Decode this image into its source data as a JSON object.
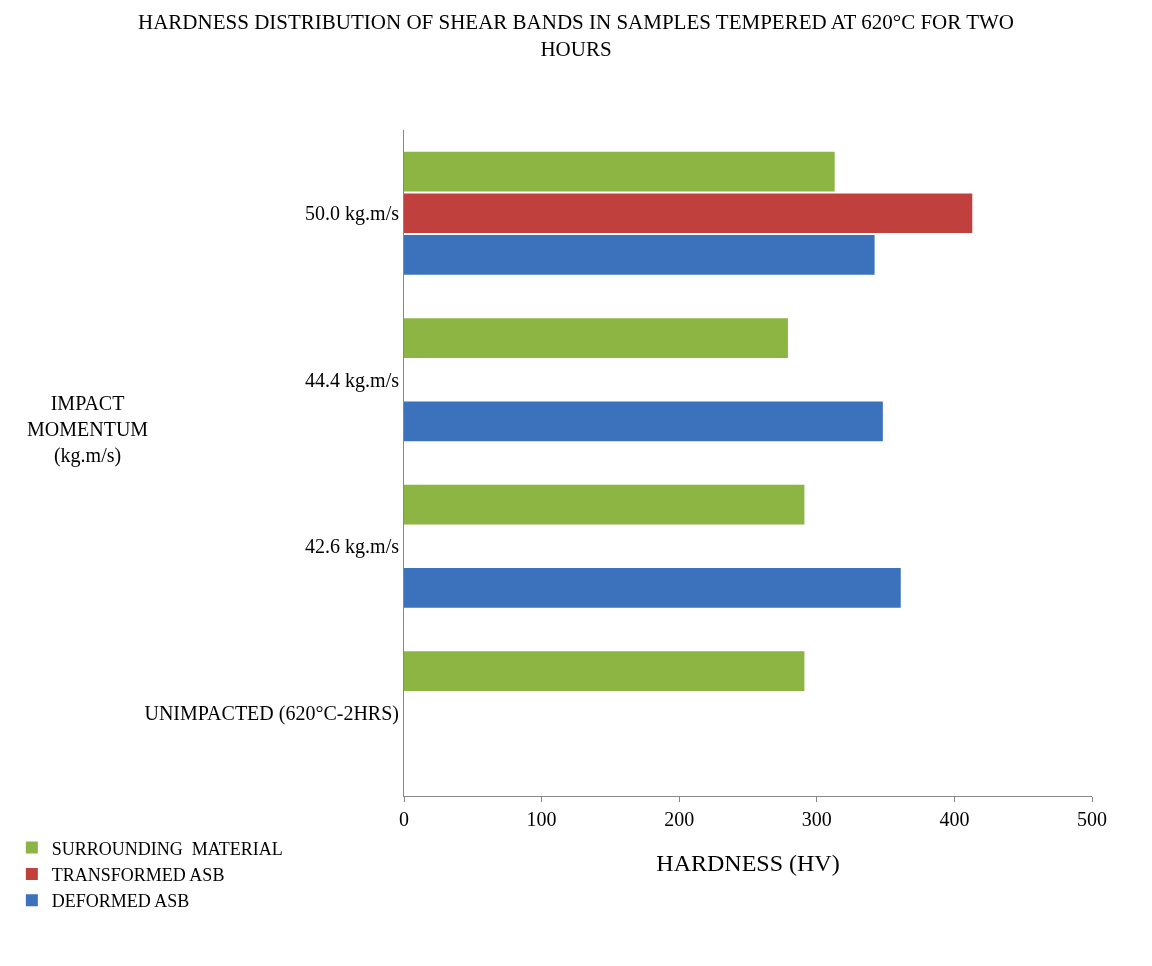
{
  "chart_data": {
    "type": "bar",
    "orientation": "horizontal",
    "title": "HARDNESS DISTRIBUTION OF SHEAR BANDS IN SAMPLES TEMPERED AT 620°C FOR TWO HOURS",
    "xlabel": "HARDNESS (HV)",
    "ylabel": "IMPACT MOMENTUM (kg.m/s)",
    "categories": [
      "50.0 kg.m/s",
      "44.4 kg.m/s",
      "42.6 kg.m/s",
      "UNIMPACTED (620°C-2HRS)"
    ],
    "series": [
      {
        "name": "SURROUNDING  MATERIAL",
        "color": "#8db543",
        "values": [
          313,
          279,
          291,
          291
        ]
      },
      {
        "name": "TRANSFORMED ASB",
        "color": "#c0403e",
        "values": [
          413,
          null,
          null,
          null
        ]
      },
      {
        "name": "DEFORMED ASB",
        "color": "#3c72bb",
        "values": [
          342,
          348,
          361,
          null
        ]
      }
    ],
    "xlim": [
      0,
      500
    ],
    "xticks": [
      0,
      100,
      200,
      300,
      400,
      500
    ],
    "legend": "bottom left"
  }
}
